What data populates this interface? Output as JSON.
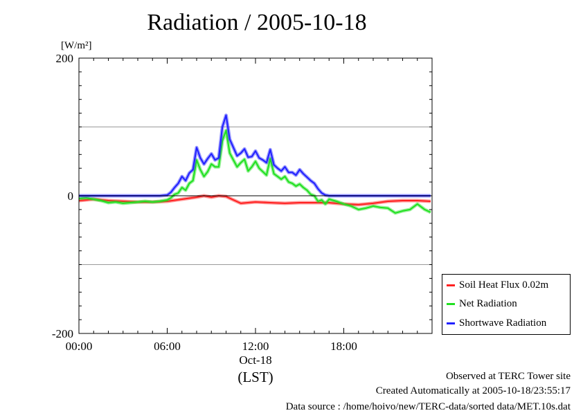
{
  "chart_data": {
    "type": "line",
    "title": "Radiation / 2005-10-18",
    "ylabel": "[W/m²]",
    "xlabel": "(LST)",
    "date_label": "Oct-18",
    "xlim_hours": [
      0,
      24
    ],
    "ylim": [
      -200,
      200
    ],
    "x_ticks": [
      "00:00",
      "06:00",
      "12:00",
      "18:00"
    ],
    "y_ticks": [
      "200",
      "0",
      "-200"
    ],
    "grid": "horizontal at ±100",
    "legend_position": "bottom-right outside plot",
    "series": [
      {
        "name": "Soil Heat Flux 0.02m",
        "color": "#ff2020",
        "x": [
          0,
          1,
          2,
          3,
          4,
          5,
          6,
          7,
          8,
          8.5,
          9,
          9.5,
          10,
          10.5,
          11,
          12,
          13,
          14,
          15,
          16,
          17,
          18,
          19,
          20,
          21,
          22,
          23,
          23.9
        ],
        "y": [
          -7,
          -5,
          -7,
          -8,
          -9,
          -9,
          -8,
          -5,
          -2,
          0,
          -2,
          0,
          -1,
          -6,
          -11,
          -9,
          -10,
          -11,
          -10,
          -10,
          -10,
          -12,
          -13,
          -11,
          -8,
          -7,
          -7,
          -8
        ]
      },
      {
        "name": "Net Radiation",
        "color": "#20e020",
        "x": [
          0,
          0.5,
          1,
          1.5,
          2,
          2.5,
          3,
          3.5,
          4,
          4.5,
          5,
          5.5,
          6,
          6.25,
          6.5,
          6.75,
          7,
          7.25,
          7.5,
          7.75,
          8,
          8.25,
          8.5,
          8.75,
          9,
          9.25,
          9.5,
          9.75,
          10,
          10.25,
          10.5,
          10.75,
          11,
          11.25,
          11.5,
          11.75,
          12,
          12.25,
          12.5,
          12.75,
          13,
          13.25,
          13.5,
          13.75,
          14,
          14.25,
          14.5,
          14.75,
          15,
          15.25,
          15.5,
          15.75,
          16,
          16.25,
          16.5,
          16.75,
          17,
          17.5,
          18,
          18.5,
          19,
          19.5,
          20,
          20.5,
          21,
          21.5,
          22,
          22.5,
          23,
          23.5,
          23.9
        ],
        "y": [
          -4,
          -3,
          -5,
          -7,
          -10,
          -9,
          -11,
          -10,
          -9,
          -8,
          -9,
          -8,
          -6,
          -3,
          2,
          4,
          12,
          8,
          18,
          22,
          52,
          38,
          28,
          35,
          46,
          42,
          42,
          80,
          95,
          62,
          52,
          42,
          48,
          53,
          36,
          42,
          50,
          40,
          35,
          30,
          54,
          32,
          28,
          24,
          28,
          20,
          18,
          14,
          17,
          12,
          8,
          2,
          0,
          -8,
          -6,
          -12,
          -5,
          -8,
          -12,
          -15,
          -20,
          -18,
          -15,
          -17,
          -18,
          -25,
          -22,
          -20,
          -12,
          -20,
          -24
        ]
      },
      {
        "name": "Shortwave Radiation",
        "color": "#2020ff",
        "x": [
          0,
          1,
          2,
          3,
          4,
          5,
          5.5,
          6,
          6.25,
          6.5,
          6.75,
          7,
          7.25,
          7.5,
          7.75,
          8,
          8.25,
          8.5,
          8.75,
          9,
          9.25,
          9.5,
          9.75,
          10,
          10.25,
          10.5,
          10.75,
          11,
          11.25,
          11.5,
          11.75,
          12,
          12.25,
          12.5,
          12.75,
          13,
          13.25,
          13.5,
          13.75,
          14,
          14.25,
          14.5,
          14.75,
          15,
          15.25,
          15.5,
          15.75,
          16,
          16.25,
          16.5,
          16.75,
          17,
          17.5,
          18,
          19,
          20,
          21,
          22,
          23,
          23.9
        ],
        "y": [
          0,
          0,
          0,
          0,
          0,
          0,
          0,
          1,
          5,
          12,
          18,
          28,
          22,
          33,
          38,
          70,
          55,
          46,
          54,
          61,
          52,
          55,
          100,
          117,
          82,
          70,
          58,
          62,
          68,
          56,
          57,
          65,
          55,
          52,
          48,
          67,
          45,
          40,
          36,
          42,
          34,
          34,
          30,
          38,
          32,
          27,
          22,
          18,
          10,
          4,
          1,
          0,
          0,
          0,
          0,
          0,
          0,
          0,
          0,
          0
        ]
      }
    ]
  },
  "footer": {
    "observed": "Observed at TERC Tower site",
    "created": "Created Automatically at 2005-10-18/23:55:17",
    "source": "Data source : /home/hoivo/new/TERC-data/sorted  data/MET.10s.dat"
  }
}
